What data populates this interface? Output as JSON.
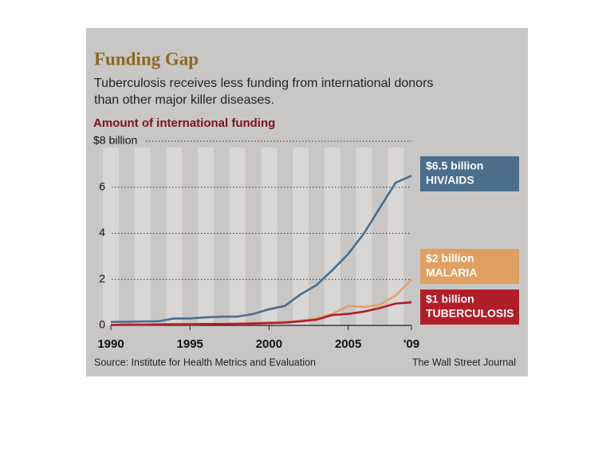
{
  "chart_data": {
    "type": "line",
    "title": "Funding Gap",
    "subtitle": [
      "Tuberculosis receives less funding from international donors",
      "than other major killer diseases."
    ],
    "y_label": "Amount of international funding",
    "source": "Source: Institute for Health Metrics and Evaluation",
    "credit": "The Wall Street Journal",
    "x": [
      1990,
      1991,
      1992,
      1993,
      1994,
      1995,
      1996,
      1997,
      1998,
      1999,
      2000,
      2001,
      2002,
      2003,
      2004,
      2005,
      2006,
      2007,
      2008,
      2009
    ],
    "xlim": [
      1990,
      2009
    ],
    "xticks": [
      1990,
      1995,
      2000,
      2005,
      {
        "value": 2009,
        "label": "'09"
      }
    ],
    "ylim": [
      0,
      8
    ],
    "yticks": [
      0,
      2,
      4,
      6,
      {
        "value": 8,
        "label": "$8 billion"
      }
    ],
    "grid": true,
    "series": [
      {
        "name": "HIV/AIDS",
        "color": "#4a6e8c",
        "end_label": "$6.5 billion",
        "values": [
          0.15,
          0.16,
          0.17,
          0.18,
          0.3,
          0.3,
          0.35,
          0.38,
          0.38,
          0.5,
          0.7,
          0.85,
          1.35,
          1.75,
          2.4,
          3.1,
          4.0,
          5.1,
          6.2,
          6.5
        ]
      },
      {
        "name": "MALARIA",
        "color": "#e0a062",
        "end_label": "$2 billion",
        "values": [
          0.02,
          0.03,
          0.03,
          0.04,
          0.05,
          0.05,
          0.06,
          0.07,
          0.08,
          0.1,
          0.12,
          0.15,
          0.2,
          0.3,
          0.5,
          0.85,
          0.8,
          0.9,
          1.3,
          2.0
        ]
      },
      {
        "name": "TUBERCULOSIS",
        "color": "#b01e28",
        "end_label": "$1 billion",
        "values": [
          0.02,
          0.03,
          0.03,
          0.04,
          0.05,
          0.05,
          0.06,
          0.06,
          0.07,
          0.08,
          0.1,
          0.12,
          0.18,
          0.25,
          0.45,
          0.5,
          0.6,
          0.75,
          0.95,
          1.0
        ]
      }
    ]
  }
}
